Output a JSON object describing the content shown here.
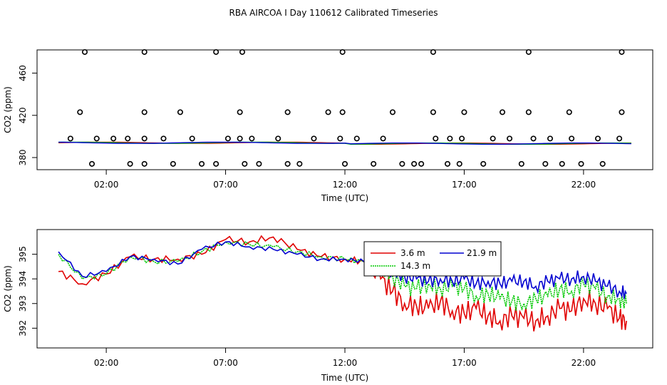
{
  "figure_title": "RBA AIRCOA I  Day 110612  Calibrated Timeseries",
  "chart_data": [
    {
      "type": "scatter",
      "name": "upper",
      "xlabel": "Time (UTC)",
      "ylabel": "CO2 (ppm)",
      "xlim": [
        -0.9,
        24.9
      ],
      "ylim": [
        368.5,
        482.0
      ],
      "xticks": [
        2,
        7,
        12,
        17,
        22
      ],
      "xtick_labels": [
        "02:00",
        "07:00",
        "12:00",
        "17:00",
        "22:00"
      ],
      "yticks": [
        380,
        420,
        460
      ],
      "ytick_labels": [
        "380",
        "420",
        "460"
      ],
      "calibration_points": {
        "x": [
          1.4,
          3.0,
          3.6,
          4.8,
          6.0,
          6.6,
          7.8,
          8.4,
          9.6,
          10.1,
          12.0,
          13.2,
          14.4,
          14.9,
          15.2,
          16.3,
          16.8,
          17.8,
          19.4,
          20.4,
          21.1,
          21.9,
          22.8,
          0.5,
          1.6,
          2.3,
          2.9,
          3.6,
          4.4,
          5.6,
          7.1,
          7.6,
          8.1,
          9.2,
          10.7,
          11.8,
          12.5,
          13.6,
          15.8,
          16.4,
          16.9,
          18.2,
          18.9,
          19.9,
          20.6,
          21.5,
          22.6,
          23.5,
          0.9,
          3.6,
          5.1,
          7.6,
          9.6,
          11.3,
          11.9,
          14.0,
          15.7,
          17.0,
          18.6,
          19.7,
          21.4,
          23.6,
          1.1,
          3.6,
          6.6,
          7.7,
          11.9,
          15.7,
          19.7,
          23.6
        ],
        "y": [
          374,
          374,
          374,
          374,
          374,
          374,
          374,
          374,
          374,
          374,
          374,
          374,
          374,
          374,
          374,
          374,
          374,
          374,
          374,
          374,
          374,
          374,
          374,
          398,
          398,
          398,
          398,
          398,
          398,
          398,
          398,
          398,
          398,
          398,
          398,
          398,
          398,
          398,
          398,
          398,
          398,
          398,
          398,
          398,
          398,
          398,
          398,
          398,
          423,
          423,
          423,
          423,
          423,
          423,
          423,
          423,
          423,
          423,
          423,
          423,
          423,
          423,
          480,
          480,
          480,
          480,
          480,
          480,
          480,
          480
        ]
      },
      "series_note": "three near-flat traces around 394 ppm"
    },
    {
      "type": "line",
      "name": "lower",
      "xlabel": "Time (UTC)",
      "ylabel": "CO2 (ppm)",
      "xlim": [
        -0.9,
        24.9
      ],
      "ylim": [
        391.2,
        396.0
      ],
      "xticks": [
        2,
        7,
        12,
        17,
        22
      ],
      "xtick_labels": [
        "02:00",
        "07:00",
        "12:00",
        "17:00",
        "22:00"
      ],
      "yticks": [
        392,
        393,
        394,
        395
      ],
      "ytick_labels": [
        "392",
        "393",
        "394",
        "395"
      ],
      "legend_position": "top-center",
      "series": [
        {
          "name": "3.6 m",
          "color": "#e00000",
          "x": [
            0,
            1,
            2,
            3,
            4,
            5,
            6,
            7,
            8,
            9,
            10,
            11,
            12,
            12.8,
            13.5,
            14,
            14.5,
            15,
            15.5,
            16,
            16.5,
            17,
            17.5,
            18,
            18.5,
            19,
            19.5,
            20,
            20.5,
            21,
            21.5,
            22,
            22.5,
            23,
            23.5,
            23.8
          ],
          "y": [
            394.3,
            393.8,
            394.2,
            394.9,
            394.8,
            394.8,
            395.0,
            395.6,
            395.5,
            395.7,
            395.2,
            394.9,
            394.8,
            394.7,
            394.0,
            393.5,
            393.0,
            392.9,
            392.8,
            393.1,
            392.7,
            392.6,
            392.8,
            392.5,
            392.3,
            392.5,
            392.4,
            392.3,
            392.5,
            392.8,
            392.7,
            393.2,
            393.0,
            392.8,
            392.4,
            392.3
          ]
        },
        {
          "name": "21.9 m",
          "color": "#0000d0",
          "x": [
            0,
            1,
            2,
            3,
            4,
            5,
            6,
            7,
            8,
            9,
            10,
            11,
            12,
            12.8,
            13.5,
            14,
            14.5,
            15,
            15.5,
            16,
            16.5,
            17,
            17.5,
            18,
            18.5,
            19,
            19.5,
            20,
            20.5,
            21,
            21.5,
            22,
            22.5,
            23,
            23.5,
            23.8
          ],
          "y": [
            395.1,
            394.1,
            394.3,
            394.9,
            394.8,
            394.6,
            395.2,
            395.5,
            395.3,
            395.2,
            395.0,
            394.8,
            394.8,
            394.7,
            394.6,
            394.3,
            394.1,
            394.0,
            393.9,
            394.0,
            393.9,
            394.0,
            393.8,
            393.9,
            393.8,
            393.9,
            393.9,
            393.7,
            393.9,
            394.0,
            394.0,
            394.1,
            393.9,
            393.7,
            393.5,
            393.4
          ]
        },
        {
          "name": "14.3 m",
          "color": "#00c800",
          "x": [
            0,
            1,
            2,
            3,
            4,
            5,
            6,
            7,
            8,
            9,
            10,
            11,
            12,
            12.8,
            13.5,
            14,
            14.5,
            15,
            15.5,
            16,
            16.5,
            17,
            17.5,
            18,
            18.5,
            19,
            19.5,
            20,
            20.5,
            21,
            21.5,
            22,
            22.5,
            23,
            23.5,
            23.8
          ],
          "y": [
            395.0,
            394.0,
            394.2,
            394.9,
            394.7,
            394.7,
            395.1,
            395.5,
            395.4,
            395.3,
            395.1,
            394.9,
            394.8,
            394.7,
            394.5,
            394.1,
            393.7,
            393.6,
            393.8,
            393.6,
            393.7,
            393.6,
            393.3,
            393.4,
            393.2,
            393.1,
            393.0,
            393.2,
            393.3,
            393.6,
            393.5,
            393.8,
            393.6,
            393.3,
            393.2,
            393.0
          ]
        }
      ]
    }
  ]
}
